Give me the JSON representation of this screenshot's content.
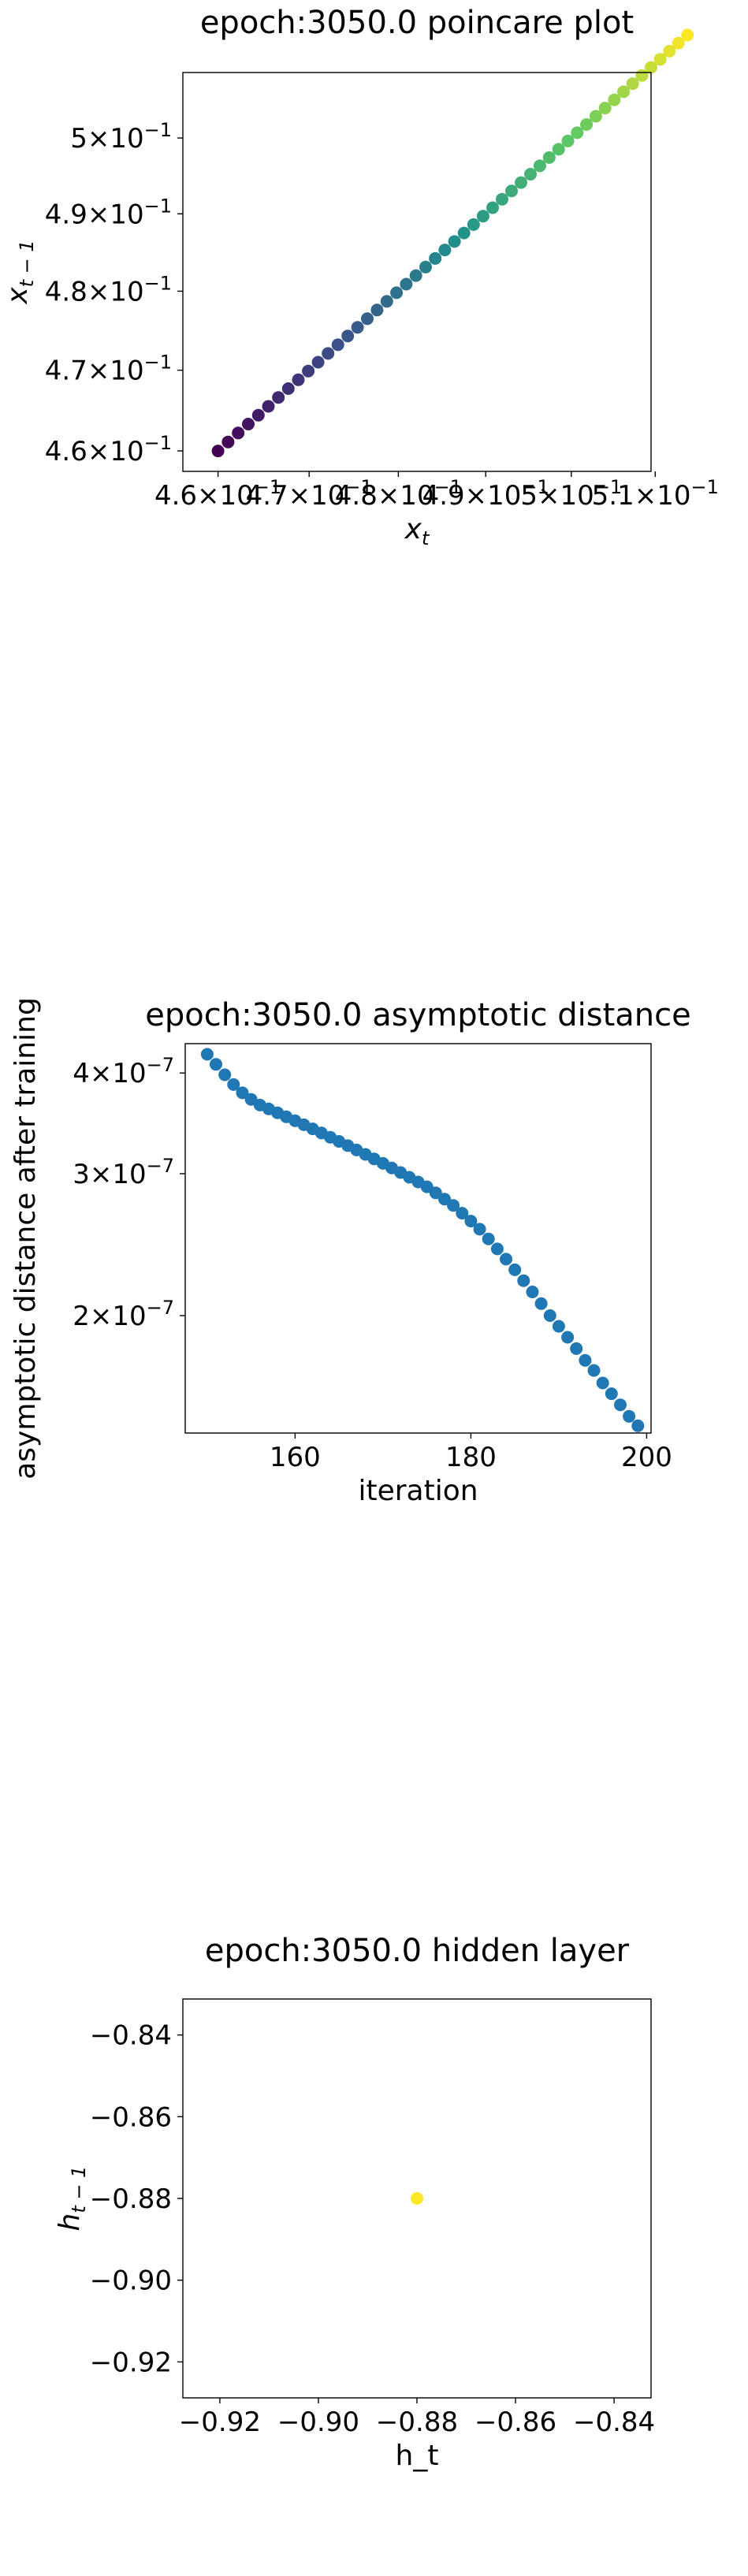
{
  "chart_data": [
    {
      "type": "scatter",
      "title": "epoch:3050.0 poincare plot",
      "xlabel": "x",
      "xlabel_sub": "t",
      "ylabel": "x",
      "ylabel_sub": "t − 1",
      "xscale": "log",
      "yscale": "log",
      "xlim": [
        0.4562,
        0.5095
      ],
      "ylim": [
        0.4575,
        0.5088
      ],
      "xticks": [
        {
          "value": 0.46,
          "mant": "4.6",
          "exp": "−1"
        },
        {
          "value": 0.47,
          "mant": "4.7",
          "exp": "−1"
        },
        {
          "value": 0.48,
          "mant": "4.8",
          "exp": "−1"
        },
        {
          "value": 0.49,
          "mant": "4.9",
          "exp": "−1"
        },
        {
          "value": 0.5,
          "mant": "5",
          "exp": "−1"
        },
        {
          "value": 0.51,
          "mant": "5.1",
          "exp": "−1"
        }
      ],
      "yticks": [
        {
          "value": 0.46,
          "mant": "4.6",
          "exp": "−1"
        },
        {
          "value": 0.47,
          "mant": "4.7",
          "exp": "−1"
        },
        {
          "value": 0.48,
          "mant": "4.8",
          "exp": "−1"
        },
        {
          "value": 0.49,
          "mant": "4.9",
          "exp": "−1"
        },
        {
          "value": 0.5,
          "mant": "5",
          "exp": "−1"
        }
      ],
      "x_start": 0.46,
      "x_step": 0.0011,
      "num_points": 50,
      "colormap": [
        "#440154",
        "#3b528b",
        "#21918c",
        "#5ec962",
        "#fde725"
      ],
      "grid": false
    },
    {
      "type": "scatter",
      "title": "epoch:3050.0 asymptotic distance",
      "xlabel": "iteration",
      "ylabel": "asymptotic distance after training",
      "yscale": "log",
      "xlim": [
        147.5,
        200.5
      ],
      "ylim": [
        1.43e-07,
        4.35e-07
      ],
      "xticks": [
        {
          "value": 160,
          "label": "160"
        },
        {
          "value": 180,
          "label": "180"
        },
        {
          "value": 200,
          "label": "200"
        }
      ],
      "yticks": [
        {
          "value": 2e-07,
          "mant": "2",
          "exp": "−7"
        },
        {
          "value": 3e-07,
          "mant": "3",
          "exp": "−7"
        },
        {
          "value": 4e-07,
          "mant": "4",
          "exp": "−7"
        }
      ],
      "x": [
        150,
        151,
        152,
        153,
        154,
        155,
        156,
        157,
        158,
        159,
        160,
        161,
        162,
        163,
        164,
        165,
        166,
        167,
        168,
        169,
        170,
        171,
        172,
        173,
        174,
        175,
        176,
        177,
        178,
        179,
        180,
        181,
        182,
        183,
        184,
        185,
        186,
        187,
        188,
        189,
        190,
        191,
        192,
        193,
        194,
        195,
        196,
        197,
        198,
        199
      ],
      "y": [
        4.22e-07,
        4.1e-07,
        3.98e-07,
        3.87e-07,
        3.78e-07,
        3.71e-07,
        3.65e-07,
        3.61e-07,
        3.57e-07,
        3.53e-07,
        3.49e-07,
        3.45e-07,
        3.41e-07,
        3.37e-07,
        3.33e-07,
        3.29e-07,
        3.25e-07,
        3.21e-07,
        3.17e-07,
        3.13e-07,
        3.09e-07,
        3.05e-07,
        3.01e-07,
        2.97e-07,
        2.93e-07,
        2.89e-07,
        2.84e-07,
        2.79e-07,
        2.74e-07,
        2.68e-07,
        2.62e-07,
        2.56e-07,
        2.49e-07,
        2.42e-07,
        2.35e-07,
        2.28e-07,
        2.21e-07,
        2.14e-07,
        2.07e-07,
        2e-07,
        1.94e-07,
        1.88e-07,
        1.82e-07,
        1.76e-07,
        1.71e-07,
        1.65e-07,
        1.6e-07,
        1.55e-07,
        1.5e-07,
        1.46e-07
      ],
      "color": "#1f77b4",
      "grid": false
    },
    {
      "type": "scatter",
      "title": "epoch:3050.0 hidden layer",
      "xlabel": "h_t",
      "ylabel": "h",
      "ylabel_sub": "t − 1",
      "xlim": [
        -0.9275,
        -0.8325
      ],
      "ylim": [
        -0.9288,
        -0.8312
      ],
      "xticks": [
        {
          "value": -0.92,
          "label": "−0.92"
        },
        {
          "value": -0.9,
          "label": "−0.90"
        },
        {
          "value": -0.88,
          "label": "−0.88"
        },
        {
          "value": -0.86,
          "label": "−0.86"
        },
        {
          "value": -0.84,
          "label": "−0.84"
        }
      ],
      "yticks": [
        {
          "value": -0.84,
          "label": "−0.84"
        },
        {
          "value": -0.86,
          "label": "−0.86"
        },
        {
          "value": -0.88,
          "label": "−0.88"
        },
        {
          "value": -0.9,
          "label": "−0.90"
        },
        {
          "value": -0.92,
          "label": "−0.92"
        }
      ],
      "x": [
        -0.88
      ],
      "y": [
        -0.88
      ],
      "color": "#fde725",
      "grid": false
    }
  ]
}
